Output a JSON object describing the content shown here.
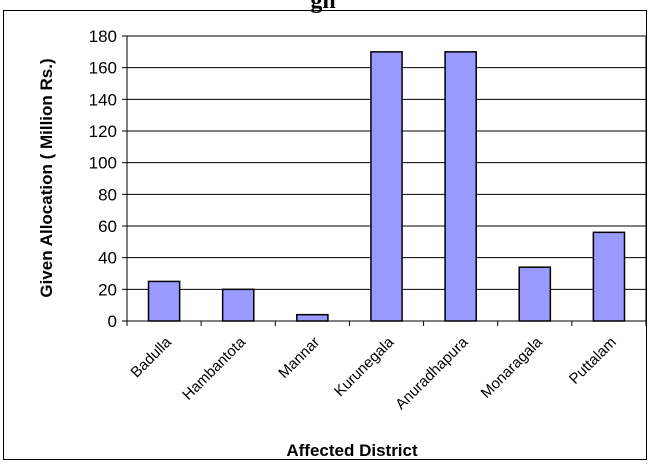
{
  "title_fragment": "gn",
  "chart_data": {
    "type": "bar",
    "title": "",
    "xlabel": "Affected District",
    "ylabel": "Given Allocation ( Million Rs.)",
    "categories": [
      "Badulla",
      "Hambantota",
      "Mannar",
      "Kurunegala",
      "Anuradhapura",
      "Monaragala",
      "Puttalam"
    ],
    "values": [
      25,
      20,
      4,
      170,
      170,
      34,
      56
    ],
    "ylim": [
      0,
      180
    ],
    "yticks": [
      "0",
      "20",
      "40",
      "60",
      "80",
      "100",
      "120",
      "140",
      "160",
      "180"
    ],
    "grid": true,
    "legend": "none",
    "bar_color": "#9999ff",
    "bar_outline": "#000000"
  }
}
